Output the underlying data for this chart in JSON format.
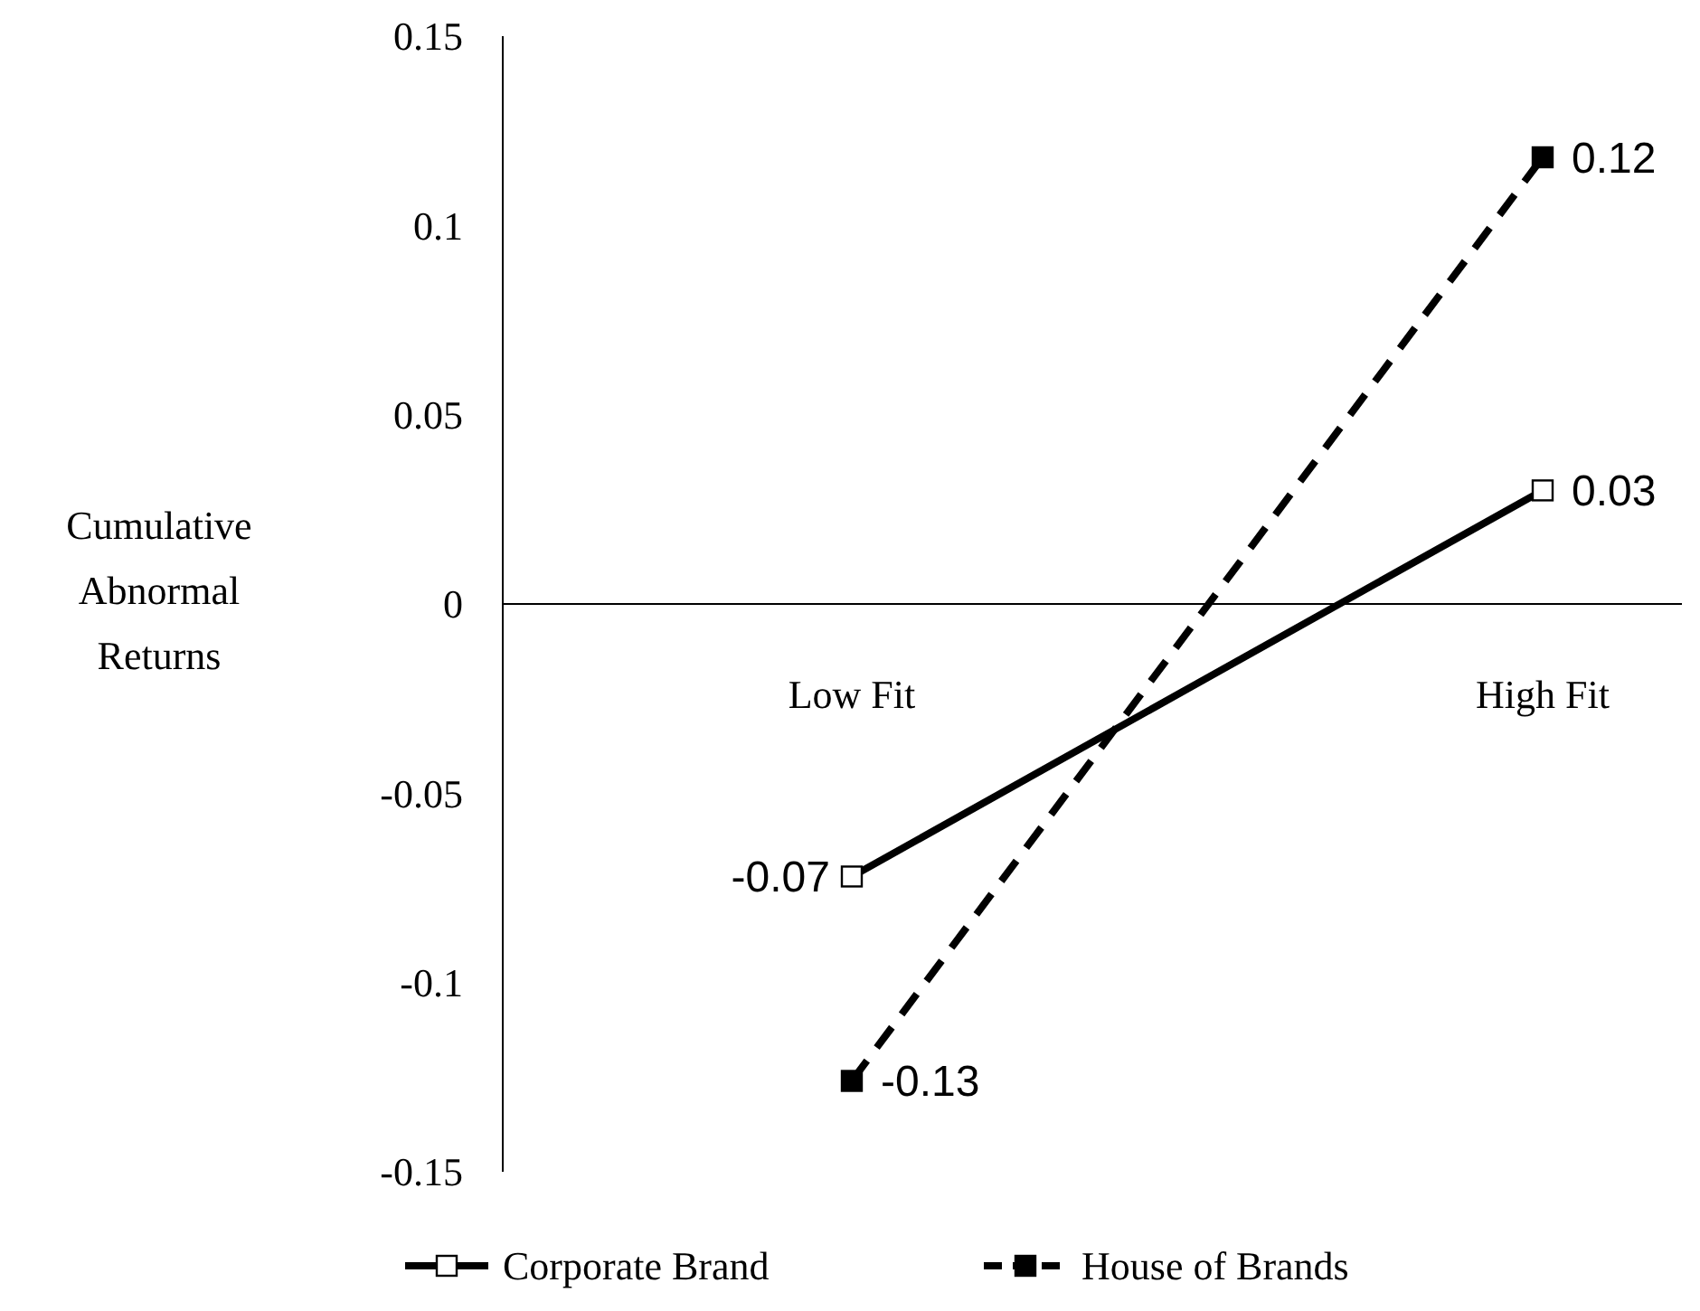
{
  "chart_data": {
    "type": "line",
    "ylabel": "Cumulative Abnormal Returns",
    "categories": [
      "Low Fit",
      "High Fit"
    ],
    "ylim": [
      -0.15,
      0.15
    ],
    "yticks": [
      -0.15,
      -0.1,
      -0.05,
      0,
      0.05,
      0.1,
      0.15
    ],
    "grid": false,
    "legend": "bottom",
    "series": [
      {
        "name": "Corporate Brand",
        "color": "#000000",
        "values": [
          -0.072,
          0.03
        ],
        "value_labels": [
          "-0.07",
          "0.03"
        ],
        "line_style": "solid",
        "marker": "square"
      },
      {
        "name": "House of Brands",
        "color": "#000000",
        "values": [
          -0.126,
          0.118
        ],
        "value_labels": [
          "-0.13",
          "0.12"
        ],
        "line_style": "dashed",
        "marker": "square"
      }
    ]
  }
}
